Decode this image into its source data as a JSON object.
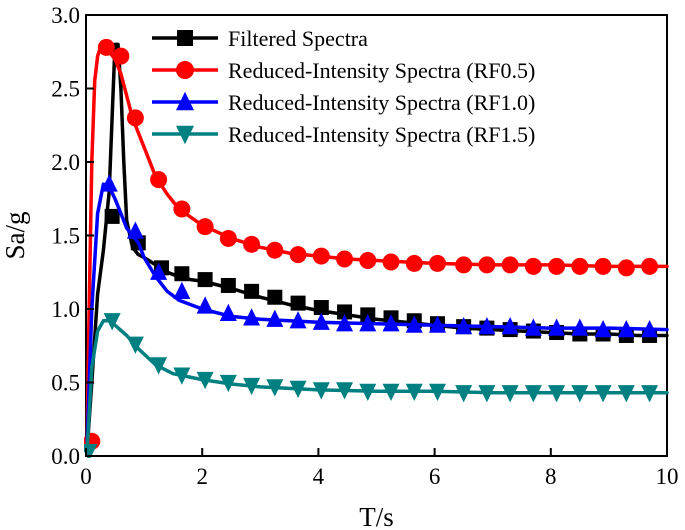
{
  "chart_data": {
    "type": "line",
    "title": "",
    "xlabel": "T/s",
    "ylabel": "Sa/g",
    "xlim": [
      0,
      10
    ],
    "ylim": [
      0,
      3.0
    ],
    "xticks": [
      0,
      2,
      4,
      6,
      8,
      10
    ],
    "xtick_labels": [
      "0",
      "2",
      "4",
      "6",
      "8",
      "10"
    ],
    "yticks": [
      0,
      0.5,
      1.0,
      1.5,
      2.0,
      2.5,
      3.0
    ],
    "ytick_labels": [
      "0.0",
      "0.5",
      "1.0",
      "1.5",
      "2.0",
      "2.5",
      "3.0"
    ],
    "grid": false,
    "legend_position": "top-right",
    "series": [
      {
        "name": "Filtered Spectra",
        "color": "#000000",
        "marker": "square",
        "x": [
          0.02,
          0.1,
          0.2,
          0.3,
          0.4,
          0.45,
          0.5,
          0.55,
          0.6,
          0.65,
          0.7,
          0.8,
          0.9,
          1.0,
          1.2,
          1.4,
          1.6,
          1.8,
          2.0,
          2.2,
          2.5,
          3.0,
          3.5,
          4.0,
          4.5,
          5.0,
          5.5,
          6.0,
          6.5,
          7.0,
          7.5,
          8.0,
          8.5,
          9.0,
          9.5,
          10.0
        ],
        "y": [
          0.05,
          0.5,
          1.1,
          1.4,
          1.8,
          2.3,
          2.8,
          2.8,
          2.5,
          2.0,
          1.6,
          1.42,
          1.37,
          1.35,
          1.3,
          1.25,
          1.22,
          1.2,
          1.19,
          1.17,
          1.14,
          1.08,
          1.03,
          0.99,
          0.96,
          0.93,
          0.91,
          0.89,
          0.87,
          0.86,
          0.85,
          0.84,
          0.83,
          0.83,
          0.82,
          0.82
        ],
        "marker_x": [
          0.45,
          0.9,
          1.3,
          1.65,
          2.05,
          2.45,
          2.85,
          3.25,
          3.65,
          4.05,
          4.45,
          4.85,
          5.25,
          5.65,
          6.05,
          6.5,
          6.9,
          7.3,
          7.7,
          8.1,
          8.5,
          8.9,
          9.3,
          9.7
        ],
        "marker_y": [
          1.63,
          1.45,
          1.28,
          1.24,
          1.2,
          1.16,
          1.12,
          1.08,
          1.04,
          1.01,
          0.98,
          0.96,
          0.94,
          0.92,
          0.9,
          0.88,
          0.87,
          0.86,
          0.85,
          0.84,
          0.83,
          0.83,
          0.82,
          0.82
        ]
      },
      {
        "name": "Reduced-Intensity Spectra (RF0.5)",
        "color": "#ff0000",
        "marker": "circle",
        "x": [
          0.02,
          0.05,
          0.1,
          0.15,
          0.2,
          0.25,
          0.3,
          0.35,
          0.4,
          0.5,
          0.6,
          0.7,
          0.8,
          1.0,
          1.2,
          1.4,
          1.6,
          2.0,
          2.5,
          3.0,
          3.5,
          4.0,
          4.5,
          5.0,
          6.0,
          7.0,
          8.0,
          9.0,
          10.0
        ],
        "y": [
          0.15,
          0.9,
          2.0,
          2.55,
          2.72,
          2.78,
          2.8,
          2.78,
          2.75,
          2.7,
          2.6,
          2.45,
          2.3,
          2.1,
          1.9,
          1.78,
          1.68,
          1.57,
          1.48,
          1.42,
          1.38,
          1.36,
          1.34,
          1.33,
          1.31,
          1.3,
          1.3,
          1.29,
          1.29
        ],
        "marker_x": [
          0.1,
          0.35,
          0.6,
          0.85,
          1.25,
          1.65,
          2.05,
          2.45,
          2.85,
          3.25,
          3.65,
          4.05,
          4.45,
          4.85,
          5.25,
          5.65,
          6.05,
          6.5,
          6.9,
          7.3,
          7.7,
          8.1,
          8.5,
          8.9,
          9.3,
          9.7
        ],
        "marker_y": [
          0.1,
          2.78,
          2.72,
          2.3,
          1.88,
          1.68,
          1.56,
          1.48,
          1.44,
          1.4,
          1.37,
          1.36,
          1.34,
          1.33,
          1.32,
          1.31,
          1.31,
          1.3,
          1.3,
          1.3,
          1.29,
          1.29,
          1.29,
          1.29,
          1.28,
          1.29
        ]
      },
      {
        "name": "Reduced-Intensity Spectra (RF1.0)",
        "color": "#0000ff",
        "marker": "triangle-up",
        "x": [
          0.02,
          0.1,
          0.2,
          0.3,
          0.4,
          0.5,
          0.6,
          0.7,
          0.8,
          0.9,
          1.0,
          1.2,
          1.4,
          1.6,
          2.0,
          2.5,
          3.0,
          3.5,
          4.0,
          5.0,
          6.0,
          7.0,
          8.0,
          9.0,
          10.0
        ],
        "y": [
          0.1,
          1.0,
          1.65,
          1.85,
          1.83,
          1.75,
          1.65,
          1.55,
          1.5,
          1.45,
          1.35,
          1.22,
          1.12,
          1.06,
          1.0,
          0.95,
          0.93,
          0.92,
          0.91,
          0.9,
          0.89,
          0.88,
          0.87,
          0.87,
          0.86
        ],
        "marker_x": [
          0.4,
          0.85,
          1.25,
          1.65,
          2.05,
          2.45,
          2.85,
          3.25,
          3.65,
          4.05,
          4.45,
          4.85,
          5.25,
          5.65,
          6.05,
          6.5,
          6.9,
          7.3,
          7.7,
          8.1,
          8.5,
          8.9,
          9.3,
          9.7
        ],
        "marker_y": [
          1.85,
          1.53,
          1.25,
          1.12,
          1.02,
          0.97,
          0.94,
          0.93,
          0.92,
          0.91,
          0.9,
          0.9,
          0.9,
          0.89,
          0.89,
          0.88,
          0.88,
          0.88,
          0.87,
          0.87,
          0.87,
          0.86,
          0.86,
          0.86
        ]
      },
      {
        "name": "Reduced-Intensity Spectra (RF1.5)",
        "color": "#008080",
        "marker": "triangle-down",
        "x": [
          0.02,
          0.1,
          0.2,
          0.3,
          0.4,
          0.5,
          0.7,
          0.9,
          1.2,
          1.5,
          2.0,
          2.5,
          3.0,
          3.5,
          4.0,
          5.0,
          6.0,
          7.0,
          8.0,
          9.0,
          10.0
        ],
        "y": [
          0.05,
          0.6,
          0.85,
          0.92,
          0.92,
          0.89,
          0.82,
          0.73,
          0.62,
          0.56,
          0.52,
          0.49,
          0.47,
          0.46,
          0.45,
          0.44,
          0.44,
          0.43,
          0.43,
          0.43,
          0.43
        ],
        "marker_x": [
          0.05,
          0.45,
          0.85,
          1.25,
          1.65,
          2.05,
          2.45,
          2.85,
          3.25,
          3.65,
          4.05,
          4.45,
          4.85,
          5.25,
          5.65,
          6.05,
          6.5,
          6.9,
          7.3,
          7.7,
          8.1,
          8.5,
          8.9,
          9.3,
          9.7
        ],
        "marker_y": [
          0.03,
          0.92,
          0.76,
          0.62,
          0.55,
          0.52,
          0.5,
          0.48,
          0.47,
          0.46,
          0.45,
          0.45,
          0.44,
          0.44,
          0.44,
          0.44,
          0.43,
          0.43,
          0.43,
          0.43,
          0.43,
          0.43,
          0.43,
          0.43,
          0.43
        ]
      }
    ]
  }
}
